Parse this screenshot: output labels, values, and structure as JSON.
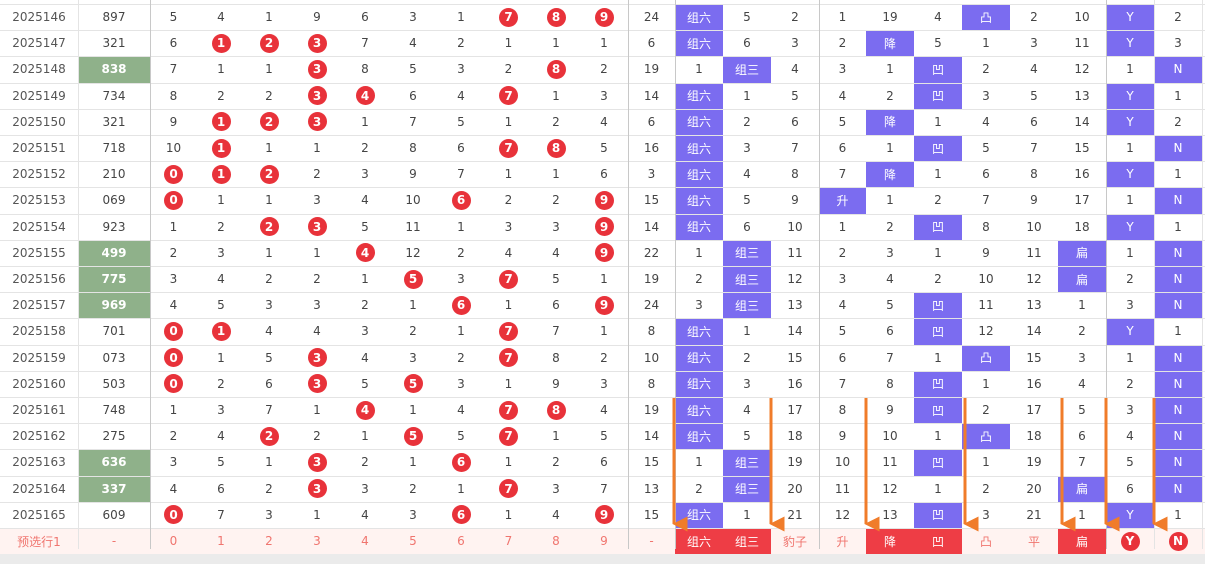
{
  "rows": [
    {
      "issue": "2025146",
      "num": "897",
      "cnt": [
        "5",
        "4",
        "1",
        "9",
        "6",
        "3",
        "1",
        "7",
        "8",
        "9"
      ],
      "span": "24",
      "shape": "组六",
      "z1": "5",
      "z2": "2",
      "lv": [
        "1",
        "19",
        "4",
        "凸",
        "2",
        "10"
      ],
      "yn": [
        "Y",
        "2"
      ]
    },
    {
      "issue": "2025147",
      "num": "321",
      "cnt": [
        "6",
        "1",
        "2",
        "3",
        "7",
        "4",
        "2",
        "1",
        "1",
        "1"
      ],
      "span": "6",
      "shape": "组六",
      "z1": "6",
      "z2": "3",
      "lv": [
        "2",
        "降",
        "5",
        "1",
        "3",
        "11"
      ],
      "yn": [
        "Y",
        "3"
      ]
    },
    {
      "issue": "2025148",
      "num": "838",
      "cnt": [
        "7",
        "1",
        "1",
        "3",
        "8",
        "5",
        "3",
        "2",
        "8",
        "2"
      ],
      "span": "19",
      "shape": "1",
      "z1": "组三",
      "z2": "4",
      "lv": [
        "3",
        "1",
        "凹",
        "2",
        "4",
        "12"
      ],
      "yn": [
        "1",
        "N"
      ]
    },
    {
      "issue": "2025149",
      "num": "734",
      "cnt": [
        "8",
        "2",
        "2",
        "3",
        "4",
        "6",
        "4",
        "7",
        "1",
        "3"
      ],
      "span": "14",
      "shape": "组六",
      "z1": "1",
      "z2": "5",
      "lv": [
        "4",
        "2",
        "凹",
        "3",
        "5",
        "13"
      ],
      "yn": [
        "Y",
        "1"
      ]
    },
    {
      "issue": "2025150",
      "num": "321",
      "cnt": [
        "9",
        "1",
        "2",
        "3",
        "1",
        "7",
        "5",
        "1",
        "2",
        "4"
      ],
      "span": "6",
      "shape": "组六",
      "z1": "2",
      "z2": "6",
      "lv": [
        "5",
        "降",
        "1",
        "4",
        "6",
        "14"
      ],
      "yn": [
        "Y",
        "2"
      ]
    },
    {
      "issue": "2025151",
      "num": "718",
      "cnt": [
        "10",
        "1",
        "1",
        "1",
        "2",
        "8",
        "6",
        "7",
        "8",
        "5"
      ],
      "span": "16",
      "shape": "组六",
      "z1": "3",
      "z2": "7",
      "lv": [
        "6",
        "1",
        "凹",
        "5",
        "7",
        "15"
      ],
      "yn": [
        "1",
        "N"
      ]
    },
    {
      "issue": "2025152",
      "num": "210",
      "cnt": [
        "0",
        "1",
        "2",
        "2",
        "3",
        "9",
        "7",
        "1",
        "1",
        "6"
      ],
      "span": "3",
      "shape": "组六",
      "z1": "4",
      "z2": "8",
      "lv": [
        "7",
        "降",
        "1",
        "6",
        "8",
        "16"
      ],
      "yn": [
        "Y",
        "1"
      ]
    },
    {
      "issue": "2025153",
      "num": "069",
      "cnt": [
        "0",
        "1",
        "1",
        "3",
        "4",
        "10",
        "6",
        "2",
        "2",
        "9"
      ],
      "span": "15",
      "shape": "组六",
      "z1": "5",
      "z2": "9",
      "lv": [
        "升",
        "1",
        "2",
        "7",
        "9",
        "17"
      ],
      "yn": [
        "1",
        "N"
      ]
    },
    {
      "issue": "2025154",
      "num": "923",
      "cnt": [
        "1",
        "2",
        "2",
        "3",
        "5",
        "11",
        "1",
        "3",
        "3",
        "9"
      ],
      "span": "14",
      "shape": "组六",
      "z1": "6",
      "z2": "10",
      "lv": [
        "1",
        "2",
        "凹",
        "8",
        "10",
        "18"
      ],
      "yn": [
        "Y",
        "1"
      ]
    },
    {
      "issue": "2025155",
      "num": "499",
      "cnt": [
        "2",
        "3",
        "1",
        "1",
        "4",
        "12",
        "2",
        "4",
        "4",
        "9"
      ],
      "span": "22",
      "shape": "1",
      "z1": "组三",
      "z2": "11",
      "lv": [
        "2",
        "3",
        "1",
        "9",
        "11",
        "扁"
      ],
      "yn": [
        "1",
        "N"
      ]
    },
    {
      "issue": "2025156",
      "num": "775",
      "cnt": [
        "3",
        "4",
        "2",
        "2",
        "1",
        "5",
        "3",
        "7",
        "5",
        "1"
      ],
      "span": "19",
      "shape": "2",
      "z1": "组三",
      "z2": "12",
      "lv": [
        "3",
        "4",
        "2",
        "10",
        "12",
        "扁"
      ],
      "yn": [
        "2",
        "N"
      ]
    },
    {
      "issue": "2025157",
      "num": "969",
      "cnt": [
        "4",
        "5",
        "3",
        "3",
        "2",
        "1",
        "6",
        "1",
        "6",
        "9"
      ],
      "span": "24",
      "shape": "3",
      "z1": "组三",
      "z2": "13",
      "lv": [
        "4",
        "5",
        "凹",
        "11",
        "13",
        "1"
      ],
      "yn": [
        "3",
        "N"
      ]
    },
    {
      "issue": "2025158",
      "num": "701",
      "cnt": [
        "0",
        "1",
        "4",
        "4",
        "3",
        "2",
        "1",
        "7",
        "7",
        "1"
      ],
      "span": "8",
      "shape": "组六",
      "z1": "1",
      "z2": "14",
      "lv": [
        "5",
        "6",
        "凹",
        "12",
        "14",
        "2"
      ],
      "yn": [
        "Y",
        "1"
      ]
    },
    {
      "issue": "2025159",
      "num": "073",
      "cnt": [
        "0",
        "1",
        "5",
        "3",
        "4",
        "3",
        "2",
        "7",
        "8",
        "2"
      ],
      "span": "10",
      "shape": "组六",
      "z1": "2",
      "z2": "15",
      "lv": [
        "6",
        "7",
        "1",
        "凸",
        "15",
        "3"
      ],
      "yn": [
        "1",
        "N"
      ]
    },
    {
      "issue": "2025160",
      "num": "503",
      "cnt": [
        "0",
        "2",
        "6",
        "3",
        "5",
        "5",
        "3",
        "1",
        "9",
        "3"
      ],
      "span": "8",
      "shape": "组六",
      "z1": "3",
      "z2": "16",
      "lv": [
        "7",
        "8",
        "凹",
        "1",
        "16",
        "4"
      ],
      "yn": [
        "2",
        "N"
      ]
    },
    {
      "issue": "2025161",
      "num": "748",
      "cnt": [
        "1",
        "3",
        "7",
        "1",
        "4",
        "1",
        "4",
        "7",
        "8",
        "4"
      ],
      "span": "19",
      "shape": "组六",
      "z1": "4",
      "z2": "17",
      "lv": [
        "8",
        "9",
        "凹",
        "2",
        "17",
        "5"
      ],
      "yn": [
        "3",
        "N"
      ]
    },
    {
      "issue": "2025162",
      "num": "275",
      "cnt": [
        "2",
        "4",
        "2",
        "2",
        "1",
        "5",
        "5",
        "7",
        "1",
        "5"
      ],
      "span": "14",
      "shape": "组六",
      "z1": "5",
      "z2": "18",
      "lv": [
        "9",
        "10",
        "1",
        "凸",
        "18",
        "6"
      ],
      "yn": [
        "4",
        "N"
      ]
    },
    {
      "issue": "2025163",
      "num": "636",
      "cnt": [
        "3",
        "5",
        "1",
        "3",
        "2",
        "1",
        "6",
        "1",
        "2",
        "6"
      ],
      "span": "15",
      "shape": "1",
      "z1": "组三",
      "z2": "19",
      "lv": [
        "10",
        "11",
        "凹",
        "1",
        "19",
        "7"
      ],
      "yn": [
        "5",
        "N"
      ]
    },
    {
      "issue": "2025164",
      "num": "337",
      "cnt": [
        "4",
        "6",
        "2",
        "3",
        "3",
        "2",
        "1",
        "7",
        "3",
        "7"
      ],
      "span": "13",
      "shape": "2",
      "z1": "组三",
      "z2": "20",
      "lv": [
        "11",
        "12",
        "1",
        "2",
        "20",
        "扁"
      ],
      "yn": [
        "6",
        "N"
      ]
    },
    {
      "issue": "2025165",
      "num": "609",
      "cnt": [
        "0",
        "7",
        "3",
        "1",
        "4",
        "3",
        "6",
        "1",
        "4",
        "9"
      ],
      "span": "15",
      "shape": "组六",
      "z1": "1",
      "z2": "21",
      "lv": [
        "12",
        "13",
        "凹",
        "3",
        "21",
        "1"
      ],
      "yn": [
        "Y",
        "1"
      ]
    }
  ],
  "pred": {
    "label": "预选行1",
    "num": "-",
    "cnt": [
      "0",
      "1",
      "2",
      "3",
      "4",
      "5",
      "6",
      "7",
      "8",
      "9"
    ],
    "span": "-",
    "shape": [
      "组六",
      "组三",
      "豹子"
    ],
    "lv": [
      "升",
      "降",
      "凹",
      "凸",
      "平",
      "扁"
    ],
    "yn": [
      "Y",
      "N"
    ]
  },
  "colors": {
    "ball": "#e8323a",
    "purple": "#7b6cf0",
    "green": "#8fb18a",
    "pred_text": "#f0756f",
    "pred_highlight": "#ee3d45",
    "arrow": "#f07c2a"
  }
}
